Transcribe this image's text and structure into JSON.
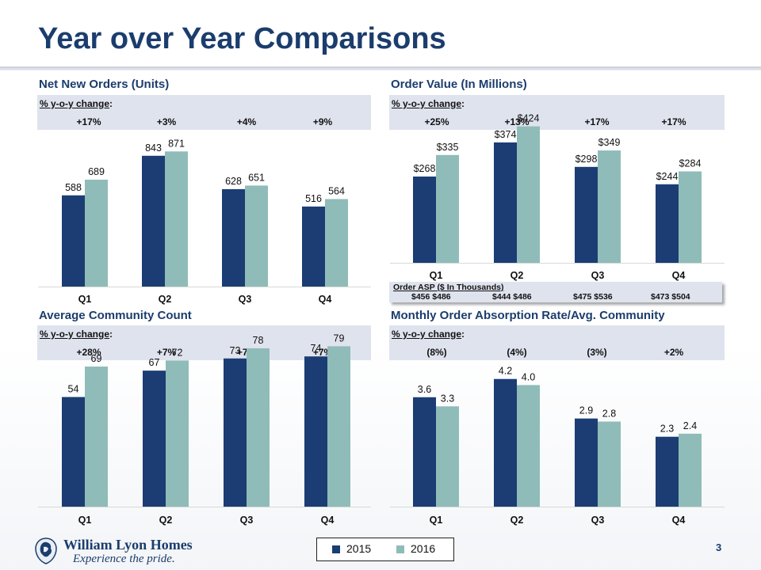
{
  "page": {
    "title": "Year over Year Comparisons",
    "page_number": "3"
  },
  "colors": {
    "series_2015": "#1b3d73",
    "series_2016": "#8fbcb8",
    "title": "#1b3d6d",
    "band": "#dfe3ee"
  },
  "pct_label": "% y-o-y change",
  "pct_label_suffix": ":",
  "panels": [
    {
      "id": "net-new-orders",
      "title": "Net New Orders (Units)",
      "pct_changes": [
        "+17%",
        "+3%",
        "+4%",
        "+9%"
      ]
    },
    {
      "id": "order-value",
      "title": "Order Value (In Millions)",
      "pct_changes": [
        "+25%",
        "+13%",
        "+17%",
        "+17%"
      ]
    },
    {
      "id": "avg-community-count",
      "title": "Average Community Count",
      "pct_changes": [
        "+28%",
        "+7%",
        "+7%",
        "+7%"
      ]
    },
    {
      "id": "absorption-rate",
      "title": "Monthly Order Absorption Rate/Avg. Community",
      "pct_changes": [
        "(8%)",
        "(4%)",
        "(3%)",
        "+2%"
      ]
    }
  ],
  "order_asp": {
    "title": "Order ASP ($ In Thousands)",
    "values": [
      "$456   $486",
      "$444   $486",
      "$475   $536",
      "$473   $504"
    ]
  },
  "chart_data": [
    {
      "type": "bar",
      "title": "Net New Orders (Units)",
      "categories": [
        "Q1",
        "Q2",
        "Q3",
        "Q4"
      ],
      "series": [
        {
          "name": "2015",
          "values": [
            588,
            843,
            628,
            516
          ],
          "labels": [
            "588",
            "843",
            "628",
            "516"
          ]
        },
        {
          "name": "2016",
          "values": [
            689,
            871,
            651,
            564
          ],
          "labels": [
            "689",
            "871",
            "651",
            "564"
          ]
        }
      ],
      "ylim": [
        0,
        1000
      ]
    },
    {
      "type": "bar",
      "title": "Order Value (In Millions)",
      "categories": [
        "Q1",
        "Q2",
        "Q3",
        "Q4"
      ],
      "series": [
        {
          "name": "2015",
          "values": [
            268,
            374,
            298,
            244
          ],
          "labels": [
            "$268",
            "$374",
            "$298",
            "$244"
          ]
        },
        {
          "name": "2016",
          "values": [
            335,
            424,
            349,
            284
          ],
          "labels": [
            "$335",
            "$424",
            "$349",
            "$284"
          ]
        }
      ],
      "ylim": [
        0,
        450
      ]
    },
    {
      "type": "bar",
      "title": "Average Community Count",
      "categories": [
        "Q1",
        "Q2",
        "Q3",
        "Q4"
      ],
      "series": [
        {
          "name": "2015",
          "values": [
            54,
            67,
            73,
            74
          ],
          "labels": [
            "54",
            "67",
            "73",
            "74"
          ]
        },
        {
          "name": "2016",
          "values": [
            69,
            72,
            78,
            79
          ],
          "labels": [
            "69",
            "72",
            "78",
            "79"
          ]
        }
      ],
      "ylim": [
        0,
        85
      ]
    },
    {
      "type": "bar",
      "title": "Monthly Order Absorption Rate/Avg. Community",
      "categories": [
        "Q1",
        "Q2",
        "Q3",
        "Q4"
      ],
      "series": [
        {
          "name": "2015",
          "values": [
            3.6,
            4.2,
            2.9,
            2.3
          ],
          "labels": [
            "3.6",
            "4.2",
            "2.9",
            "2.3"
          ]
        },
        {
          "name": "2016",
          "values": [
            3.3,
            4.0,
            2.8,
            2.4
          ],
          "labels": [
            "3.3",
            "4.0",
            "2.8",
            "2.4"
          ]
        }
      ],
      "ylim": [
        0,
        5
      ]
    }
  ],
  "legend": {
    "items": [
      "2015",
      "2016"
    ]
  },
  "logo": {
    "name": "William Lyon Homes",
    "tagline": "Experience the pride.",
    "icon": "lion-crest-icon"
  }
}
